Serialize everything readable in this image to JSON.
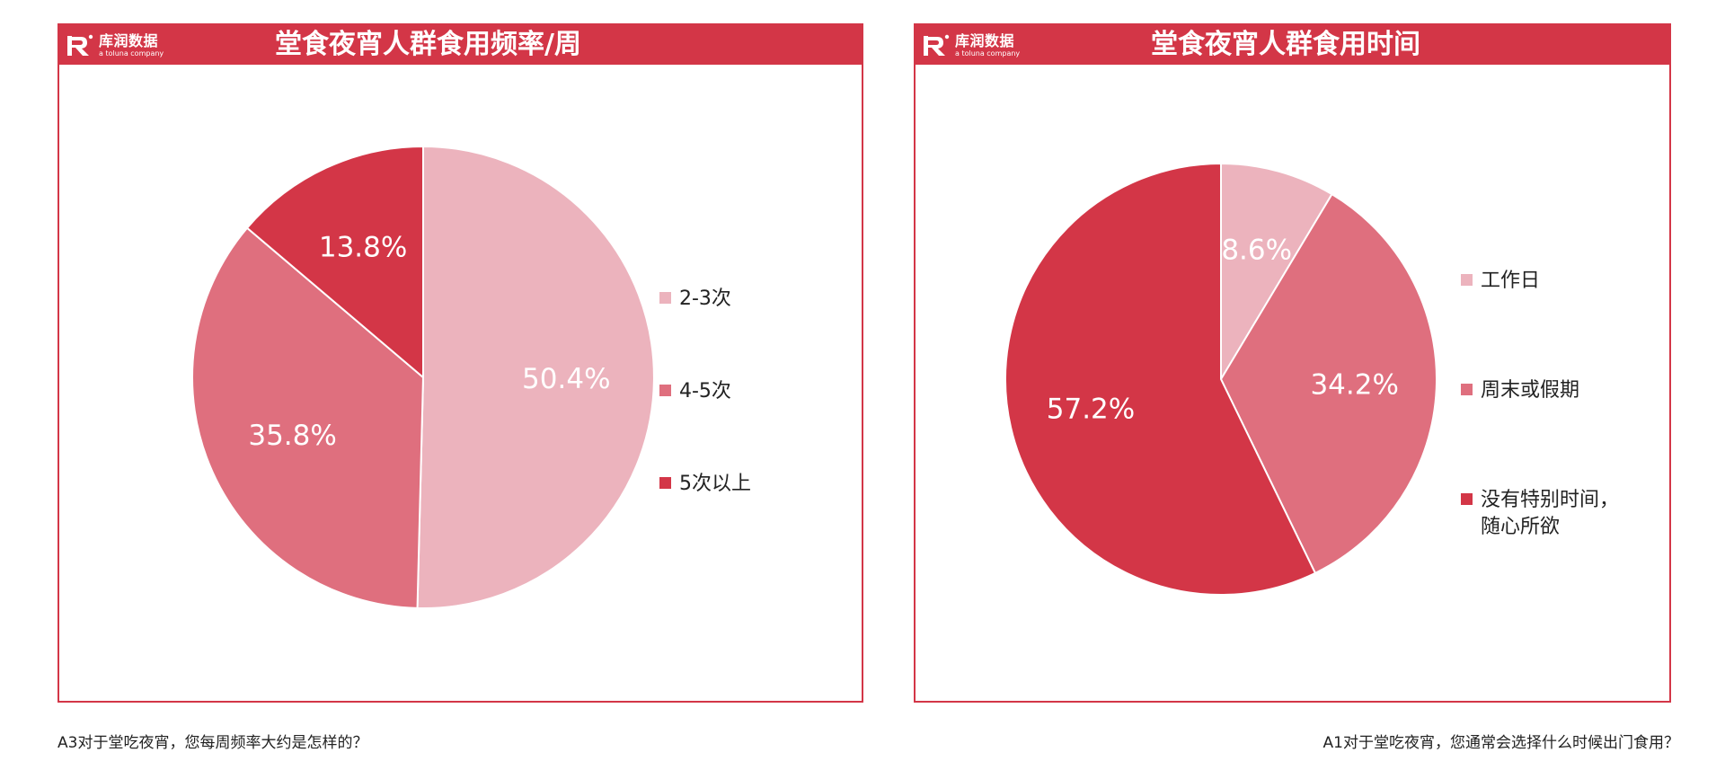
{
  "brand": {
    "name": "库润数据",
    "tagline": "a toluna company",
    "header_color": "#d33647"
  },
  "colors": {
    "light_pink": "#ecb3bd",
    "mid_pink": "#df6f7e",
    "dark_red": "#d33647",
    "slice_border": "#ffffff"
  },
  "chart_data": [
    {
      "type": "pie",
      "title": "堂食夜宵人群食用频率/周",
      "categories": [
        "2-3次",
        "4-5次",
        "5次以上"
      ],
      "values": [
        50.4,
        35.8,
        13.8
      ],
      "labels": [
        "50.4%",
        "35.8%",
        "13.8%"
      ],
      "colors": [
        "#ecb3bd",
        "#df6f7e",
        "#d33647"
      ],
      "start_angle_deg": 0,
      "direction": "clockwise",
      "legend_position": "right",
      "footnote": "A3对于堂吃夜宵，您每周频率大约是怎样的？"
    },
    {
      "type": "pie",
      "title": "堂食夜宵人群食用时间",
      "categories": [
        "工作日",
        "周末或假期",
        "没有特别时间，\n随心所欲"
      ],
      "values": [
        8.6,
        34.2,
        57.2
      ],
      "labels": [
        "8.6%",
        "34.2%",
        "57.2%"
      ],
      "colors": [
        "#ecb3bd",
        "#df6f7e",
        "#d33647"
      ],
      "start_angle_deg": 0,
      "direction": "clockwise",
      "legend_position": "right",
      "footnote": "A1对于堂吃夜宵，您通常会选择什么时候出门食用？"
    }
  ]
}
